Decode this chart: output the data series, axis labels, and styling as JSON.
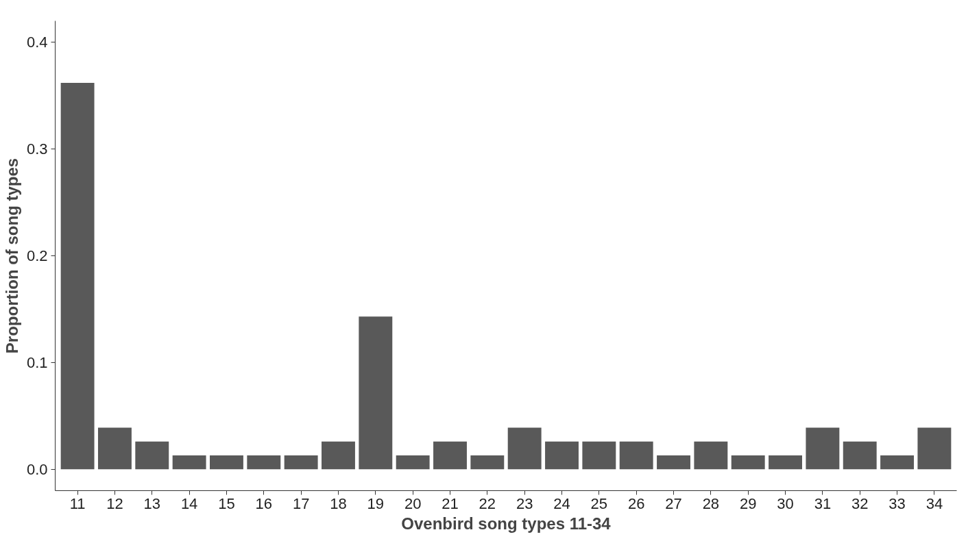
{
  "chart_data": {
    "type": "bar",
    "xlabel": "Ovenbird song types 11-34",
    "ylabel": "Proportion of song types",
    "categories": [
      "11",
      "12",
      "13",
      "14",
      "15",
      "16",
      "17",
      "18",
      "19",
      "20",
      "21",
      "22",
      "23",
      "24",
      "25",
      "26",
      "27",
      "28",
      "29",
      "30",
      "31",
      "32",
      "33",
      "34"
    ],
    "values": [
      0.362,
      0.039,
      0.026,
      0.013,
      0.013,
      0.013,
      0.013,
      0.026,
      0.143,
      0.013,
      0.026,
      0.013,
      0.039,
      0.026,
      0.026,
      0.026,
      0.013,
      0.026,
      0.013,
      0.013,
      0.039,
      0.026,
      0.013,
      0.039
    ],
    "color": "#595959",
    "ylim": [
      -0.02,
      0.42
    ],
    "yticks": [
      {
        "value": 0,
        "label": "0.0"
      },
      0.1,
      0.2,
      0.3,
      0.4
    ],
    "grid": false
  }
}
